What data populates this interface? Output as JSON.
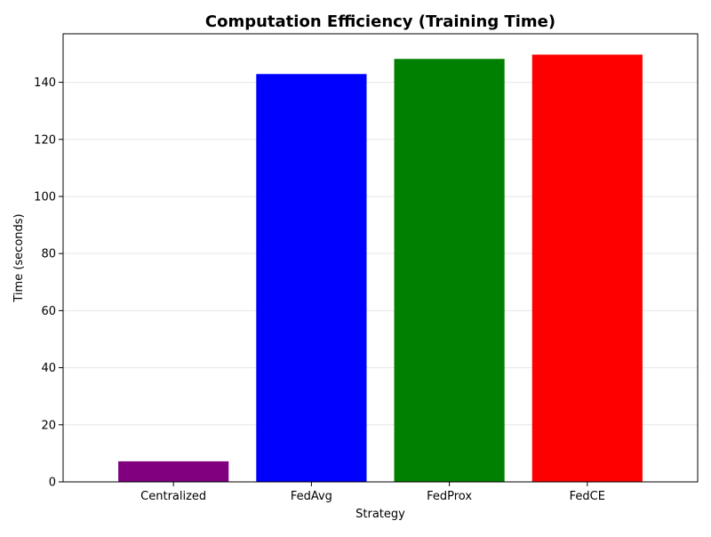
{
  "chart_data": {
    "type": "bar",
    "title": "Computation Efficiency (Training Time)",
    "xlabel": "Strategy",
    "ylabel": "Time (seconds)",
    "categories": [
      "Centralized",
      "FedAvg",
      "FedProx",
      "FedCE"
    ],
    "values": [
      7.2,
      142.9,
      148.2,
      149.7
    ],
    "colors": [
      "#800080",
      "#0000ff",
      "#008000",
      "#ff0000"
    ],
    "ylim": [
      0,
      157
    ],
    "yticks": [
      0,
      20,
      40,
      60,
      80,
      100,
      120,
      140
    ],
    "grid": "y",
    "legend": "none"
  }
}
